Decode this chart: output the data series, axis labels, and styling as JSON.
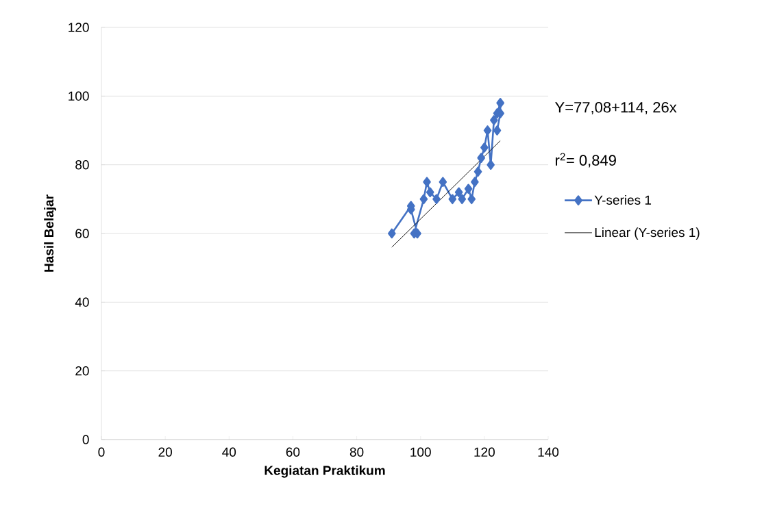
{
  "chart_data": {
    "type": "line",
    "xlabel": "Kegiatan Praktikum",
    "ylabel": "Hasil Belajar",
    "xlim": [
      0,
      140
    ],
    "xticks": [
      0,
      20,
      40,
      60,
      80,
      100,
      120,
      140
    ],
    "ylim": [
      0,
      120
    ],
    "yticks": [
      0,
      20,
      40,
      60,
      80,
      100,
      120
    ],
    "grid": "y",
    "legend": "right",
    "annotations": [
      "Y=77,08+114, 26x",
      "r$^{2}$= 0,849"
    ],
    "series": [
      {
        "name": "Y-series 1",
        "marker": "diamond",
        "color": "#4472c4",
        "x": [
          91,
          97,
          97,
          99,
          98,
          101,
          102,
          103,
          105,
          107,
          110,
          112,
          113,
          115,
          116,
          117,
          118,
          119,
          120,
          121,
          122,
          123,
          124,
          125,
          125,
          124
        ],
        "values": [
          60,
          68,
          67,
          60,
          60,
          70,
          75,
          72,
          70,
          75,
          70,
          72,
          70,
          73,
          70,
          75,
          78,
          82,
          85,
          90,
          80,
          93,
          95,
          98,
          95,
          90
        ]
      },
      {
        "name": "Linear (Y-series 1)",
        "marker": "none",
        "color": "#000000",
        "x": [
          91,
          125
        ],
        "values": [
          56,
          87
        ]
      }
    ]
  }
}
